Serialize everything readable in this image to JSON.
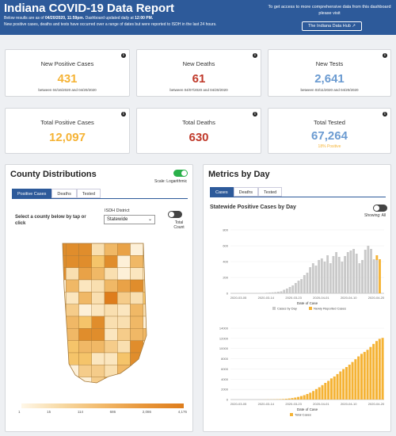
{
  "header": {
    "title": "Indiana COVID-19 Data Report",
    "line1_prefix": "Below results are as of ",
    "line1_date": "04/20/2020, 11:59pm.",
    "line1_mid": " Dashboard updated daily at ",
    "line1_time": "12:00 PM.",
    "line2": "New positive cases, deaths and tests have occurred over a range of dates but were reported to ISDH in the last 24 hours.",
    "right_text": "To get access to more comprehensive data from this dashboard please visit",
    "hub_button": "The Indiana Data Hub"
  },
  "cards": {
    "new_positive": {
      "label": "New Positive Cases",
      "value": "431",
      "range": "between 04/16/2020 and 04/20/2020"
    },
    "new_deaths": {
      "label": "New Deaths",
      "value": "61",
      "range": "between 04/07/2020 and 04/20/2020"
    },
    "new_tests": {
      "label": "New Tests",
      "value": "2,641",
      "range": "between 03/11/2020 and 04/20/2020"
    },
    "total_positive": {
      "label": "Total Positive Cases",
      "value": "12,097"
    },
    "total_deaths": {
      "label": "Total Deaths",
      "value": "630"
    },
    "total_tested": {
      "label": "Total Tested",
      "value": "67,264",
      "sub": "18% Positive"
    }
  },
  "county": {
    "title": "County Distributions",
    "scale_label": "Scale: Logarithmic",
    "tabs": [
      "Positive Cases",
      "Deaths",
      "Tested"
    ],
    "prompt": "Select a county below by tap or click",
    "district_label": "ISDH District",
    "district_value": "Statewide",
    "total_count_label": "Total Count",
    "legend_ticks": [
      "1",
      "15",
      "114",
      "686",
      "2,086",
      "4,176"
    ]
  },
  "metrics": {
    "title": "Metrics by Day",
    "tabs": [
      "Cases",
      "Deaths",
      "Tested"
    ],
    "subtitle": "Statewide Positive Cases by Day",
    "showing": "Showing: All"
  },
  "chart_data": [
    {
      "type": "bar",
      "xlabel": "Date of Case",
      "ylabel": "",
      "ylim": [
        0,
        800
      ],
      "yticks": [
        "0",
        "200",
        "400",
        "600",
        "800"
      ],
      "xticks": [
        "2020-03-05",
        "2020-03-14",
        "2020-03-23",
        "2020-04-01",
        "2020-04-10",
        "2020-04-20"
      ],
      "legend": [
        "Cases by Day",
        "Newly Reported Cases"
      ],
      "colors": [
        "#c9c9c9",
        "#f5b335"
      ],
      "series": [
        {
          "name": "Cases by Day",
          "values": [
            0,
            0,
            0,
            0,
            0,
            0,
            0,
            0,
            1,
            2,
            3,
            5,
            8,
            10,
            12,
            15,
            20,
            25,
            45,
            60,
            80,
            100,
            130,
            160,
            180,
            230,
            260,
            330,
            380,
            350,
            420,
            440,
            400,
            480,
            380,
            470,
            520,
            460,
            400,
            470,
            520,
            540,
            560,
            500,
            380,
            420,
            550,
            600,
            560,
            430,
            420,
            0,
            0
          ]
        },
        {
          "name": "Newly Reported Cases",
          "values": [
            0,
            0,
            0,
            0,
            0,
            0,
            0,
            0,
            0,
            0,
            0,
            0,
            0,
            0,
            0,
            0,
            0,
            0,
            0,
            0,
            0,
            0,
            0,
            0,
            0,
            0,
            0,
            0,
            0,
            0,
            0,
            0,
            0,
            0,
            0,
            0,
            0,
            0,
            0,
            0,
            0,
            0,
            0,
            0,
            0,
            0,
            0,
            0,
            0,
            0,
            60,
            430,
            0
          ]
        }
      ]
    },
    {
      "type": "bar",
      "xlabel": "Date of Case",
      "ylabel": "",
      "ylim": [
        0,
        14000
      ],
      "yticks": [
        "0",
        "2000",
        "4000",
        "6000",
        "8000",
        "10000",
        "12000",
        "14000"
      ],
      "xticks": [
        "2020-03-05",
        "2020-03-14",
        "2020-03-23",
        "2020-04-01",
        "2020-04-10",
        "2020-04-20"
      ],
      "legend": [
        "Total Cases"
      ],
      "colors": [
        "#f5b335"
      ],
      "series": [
        {
          "name": "Total Cases",
          "values": [
            0,
            0,
            0,
            0,
            0,
            0,
            0,
            0,
            1,
            3,
            6,
            11,
            19,
            29,
            41,
            56,
            76,
            101,
            146,
            206,
            286,
            386,
            516,
            676,
            856,
            1086,
            1346,
            1676,
            2056,
            2406,
            2826,
            3266,
            3666,
            4146,
            4526,
            4996,
            5516,
            5976,
            6376,
            6846,
            7366,
            7906,
            8466,
            8966,
            9346,
            9766,
            10316,
            10916,
            11476,
            11906,
            12097
          ]
        }
      ]
    }
  ]
}
